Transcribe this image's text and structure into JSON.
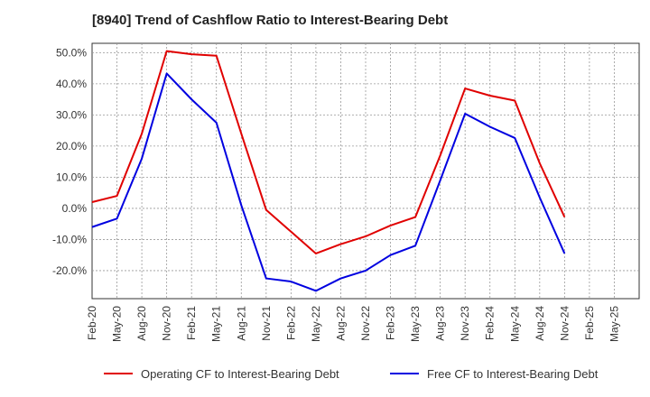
{
  "chart_data": {
    "type": "line",
    "title": "[8940]  Trend of Cashflow Ratio to Interest-Bearing Debt",
    "xlabel": "",
    "ylabel": "",
    "grid": true,
    "legend_position": "bottom",
    "ylim": [
      -29,
      53
    ],
    "y_ticks": [
      -20,
      -10,
      0,
      10,
      20,
      30,
      40,
      50
    ],
    "y_tick_labels": [
      "-20.0%",
      "-10.0%",
      "0.0%",
      "10.0%",
      "20.0%",
      "30.0%",
      "40.0%",
      "50.0%"
    ],
    "categories": [
      "Feb-20",
      "May-20",
      "Aug-20",
      "Nov-20",
      "Feb-21",
      "May-21",
      "Aug-21",
      "Nov-21",
      "Feb-22",
      "May-22",
      "Aug-22",
      "Nov-22",
      "Feb-23",
      "May-23",
      "Aug-23",
      "Nov-23",
      "Feb-24",
      "May-24",
      "Aug-24",
      "Nov-24",
      "Feb-25",
      "May-25"
    ],
    "series": [
      {
        "name": "Operating CF to Interest-Bearing Debt",
        "color": "#e00000",
        "values": [
          2.0,
          4.0,
          24.0,
          50.5,
          49.5,
          49.0,
          24.0,
          -0.5,
          -7.5,
          -14.5,
          -11.5,
          -9.0,
          -5.5,
          -2.8,
          17.0,
          38.5,
          36.2,
          34.6,
          14.5,
          -2.8,
          null,
          null
        ]
      },
      {
        "name": "Free CF to Interest-Bearing Debt",
        "color": "#0000e0",
        "values": [
          -6.0,
          -3.3,
          16.0,
          43.3,
          35.0,
          27.5,
          1.0,
          -22.5,
          -23.5,
          -26.5,
          -22.5,
          -20.0,
          -15.0,
          -12.0,
          9.0,
          30.4,
          26.2,
          22.6,
          3.5,
          -14.5,
          null,
          null
        ]
      }
    ]
  }
}
